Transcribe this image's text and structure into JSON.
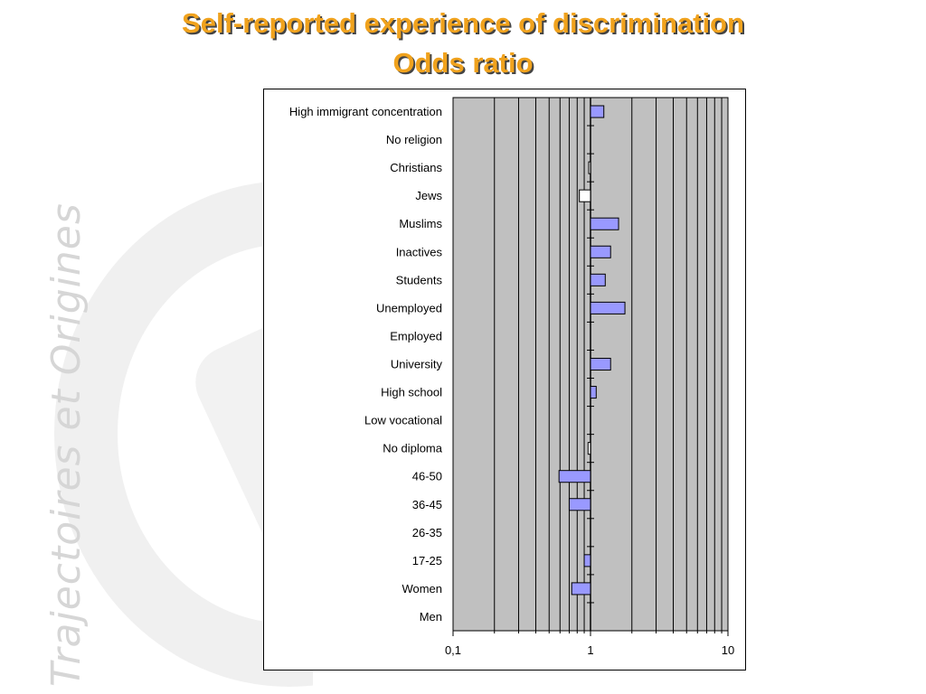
{
  "page": {
    "title_line1": "Self-reported experience of discrimination",
    "title_line2": "Odds ratio",
    "watermark": "Trajectoires et Origines",
    "colors": {
      "title": "#f0a21d",
      "plot_background": "#c0c0c0",
      "bar_fill": "#9999ff",
      "bar_fill_below_one": "#ffffff",
      "frame": "#000000"
    }
  },
  "chart_data": {
    "type": "bar",
    "orientation": "horizontal",
    "xscale": "log",
    "xlim": [
      0.1,
      10
    ],
    "reference": 1,
    "xticks": [
      "0,1",
      "1",
      "10"
    ],
    "xtick_values": [
      0.1,
      1,
      10
    ],
    "grid": true,
    "legend": "none",
    "categories": [
      "High immigrant concentration",
      "No religion",
      "Christians",
      "Jews",
      "Muslims",
      "Inactives",
      "Students",
      "Unemployed",
      "Employed",
      "University",
      "High school",
      "Low vocational",
      "No diploma",
      "46-50",
      "36-45",
      "26-35",
      "17-25",
      "Women",
      "Men"
    ],
    "values": [
      1.25,
      1.0,
      0.97,
      0.83,
      1.6,
      1.4,
      1.28,
      1.78,
      1.0,
      1.4,
      1.1,
      1.0,
      0.96,
      0.59,
      0.7,
      1.0,
      0.9,
      0.73,
      1.0
    ],
    "white_bars": [
      "Christians",
      "Jews",
      "No diploma"
    ]
  }
}
